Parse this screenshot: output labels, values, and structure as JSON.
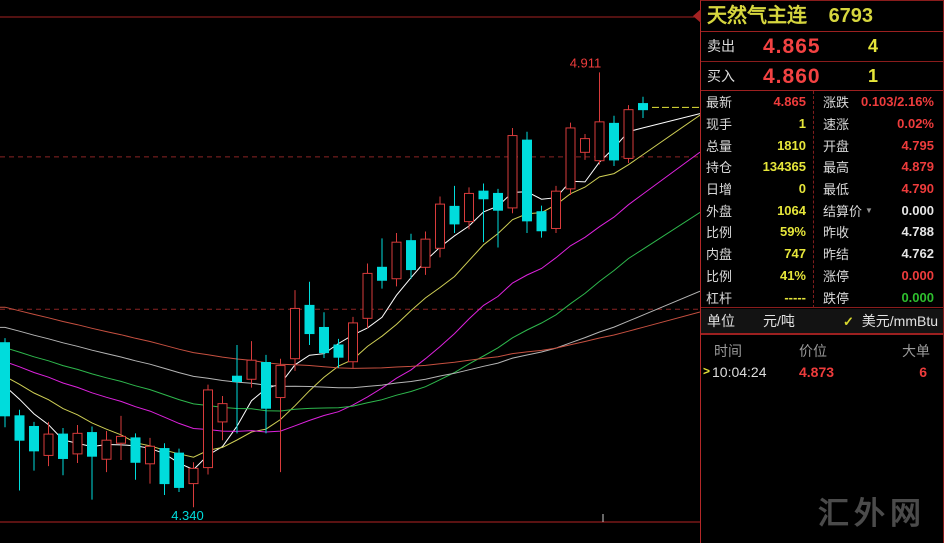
{
  "window": {
    "watermark": "汇外网"
  },
  "header": {
    "title": "天然气主连",
    "code": "6793"
  },
  "orderbook": {
    "ask": {
      "label": "卖出",
      "price": "4.865",
      "size": "4"
    },
    "bid": {
      "label": "买入",
      "price": "4.860",
      "size": "1"
    }
  },
  "stats_left": [
    {
      "label": "最新",
      "value": "4.865",
      "tone": "red"
    },
    {
      "label": "现手",
      "value": "1",
      "tone": "yellow"
    },
    {
      "label": "总量",
      "value": "1810",
      "tone": "yellow"
    },
    {
      "label": "持仓",
      "value": "134365",
      "tone": "yellow"
    },
    {
      "label": "日增",
      "value": "0",
      "tone": "yellow"
    },
    {
      "label": "外盘",
      "value": "1064",
      "tone": "yellow"
    },
    {
      "label": "比例",
      "value": "59%",
      "tone": "yellow"
    },
    {
      "label": "内盘",
      "value": "747",
      "tone": "yellow"
    },
    {
      "label": "比例",
      "value": "41%",
      "tone": "yellow"
    },
    {
      "label": "杠杆",
      "value": "-----",
      "tone": "yellow"
    }
  ],
  "stats_right": [
    {
      "label": "涨跌",
      "value": "0.103/2.16%",
      "tone": "red"
    },
    {
      "label": "速涨",
      "value": "0.02%",
      "tone": "red"
    },
    {
      "label": "开盘",
      "value": "4.795",
      "tone": "red"
    },
    {
      "label": "最高",
      "value": "4.879",
      "tone": "red"
    },
    {
      "label": "最低",
      "value": "4.790",
      "tone": "red"
    },
    {
      "label": "结算价",
      "value": "0.000",
      "tone": "white",
      "dropdown": "▼"
    },
    {
      "label": "昨收",
      "value": "4.788",
      "tone": "white"
    },
    {
      "label": "昨结",
      "value": "4.762",
      "tone": "white"
    },
    {
      "label": "涨停",
      "value": "0.000",
      "tone": "red"
    },
    {
      "label": "跌停",
      "value": "0.000",
      "tone": "green"
    }
  ],
  "units": {
    "label": "单位",
    "cny": "元/吨",
    "check": "✓",
    "usd": "美元/mmBtu"
  },
  "tape": {
    "headers": {
      "time": "时间",
      "price": "价位",
      "size": "大单"
    },
    "row": {
      "arrow": ">",
      "time": "10:04:24",
      "price": "4.873",
      "size": "6"
    }
  },
  "chart_data": {
    "type": "candlestick",
    "ylim": [
      4.293,
      5.006
    ],
    "gridlines": [
      4.8,
      4.6
    ],
    "up_color": "#d83b3b",
    "down_color": "#00dcdc",
    "current_price": 4.865,
    "current_price_color": "#e6e63a",
    "annotations": {
      "high": {
        "label": "4.911",
        "price": 4.911,
        "bar": 41,
        "color": "#ee3c3c"
      },
      "low": {
        "label": "4.340",
        "price": 4.34,
        "bar": 13,
        "color": "#00dcdc"
      }
    },
    "ma": {
      "periods": [
        5,
        10,
        20,
        30,
        45,
        60
      ],
      "colors": [
        "#ffffff",
        "#cfcf55",
        "#dd22dd",
        "#2eb84d",
        "#b5b5b5",
        "#c65040"
      ]
    },
    "candles": [
      [
        4.556,
        4.562,
        4.445,
        4.46
      ],
      [
        4.46,
        4.468,
        4.362,
        4.428
      ],
      [
        4.446,
        4.452,
        4.388,
        4.414
      ],
      [
        4.408,
        4.452,
        4.394,
        4.436
      ],
      [
        4.436,
        4.444,
        4.382,
        4.404
      ],
      [
        4.41,
        4.448,
        4.398,
        4.437
      ],
      [
        4.438,
        4.446,
        4.35,
        4.407
      ],
      [
        4.403,
        4.44,
        4.386,
        4.428
      ],
      [
        4.424,
        4.46,
        4.402,
        4.433
      ],
      [
        4.431,
        4.437,
        4.376,
        4.399
      ],
      [
        4.397,
        4.431,
        4.371,
        4.42
      ],
      [
        4.417,
        4.424,
        4.356,
        4.371
      ],
      [
        4.411,
        4.417,
        4.36,
        4.366
      ],
      [
        4.371,
        4.399,
        4.34,
        4.391
      ],
      [
        4.392,
        4.501,
        4.383,
        4.494
      ],
      [
        4.452,
        4.486,
        4.428,
        4.476
      ],
      [
        4.512,
        4.553,
        4.437,
        4.505
      ],
      [
        4.508,
        4.558,
        4.497,
        4.533
      ],
      [
        4.53,
        4.54,
        4.437,
        4.47
      ],
      [
        4.484,
        4.535,
        4.386,
        4.526
      ],
      [
        4.535,
        4.625,
        4.519,
        4.601
      ],
      [
        4.605,
        4.636,
        4.553,
        4.568
      ],
      [
        4.576,
        4.596,
        4.536,
        4.543
      ],
      [
        4.553,
        4.561,
        4.523,
        4.537
      ],
      [
        4.531,
        4.59,
        4.522,
        4.582
      ],
      [
        4.588,
        4.66,
        4.575,
        4.647
      ],
      [
        4.655,
        4.693,
        4.627,
        4.638
      ],
      [
        4.64,
        4.7,
        4.63,
        4.688
      ],
      [
        4.69,
        4.699,
        4.64,
        4.652
      ],
      [
        4.655,
        4.702,
        4.645,
        4.692
      ],
      [
        4.68,
        4.748,
        4.668,
        4.738
      ],
      [
        4.735,
        4.762,
        4.7,
        4.712
      ],
      [
        4.715,
        4.76,
        4.705,
        4.752
      ],
      [
        4.755,
        4.765,
        4.688,
        4.745
      ],
      [
        4.752,
        4.758,
        4.681,
        4.73
      ],
      [
        4.733,
        4.838,
        4.726,
        4.828
      ],
      [
        4.822,
        4.833,
        4.7,
        4.716
      ],
      [
        4.728,
        4.736,
        4.694,
        4.703
      ],
      [
        4.706,
        4.762,
        4.7,
        4.755
      ],
      [
        4.758,
        4.845,
        4.75,
        4.838
      ],
      [
        4.806,
        4.83,
        4.796,
        4.824
      ],
      [
        4.795,
        4.911,
        4.79,
        4.846
      ],
      [
        4.844,
        4.854,
        4.788,
        4.796
      ],
      [
        4.798,
        4.868,
        4.792,
        4.862
      ],
      [
        4.87,
        4.879,
        4.851,
        4.862
      ]
    ]
  }
}
